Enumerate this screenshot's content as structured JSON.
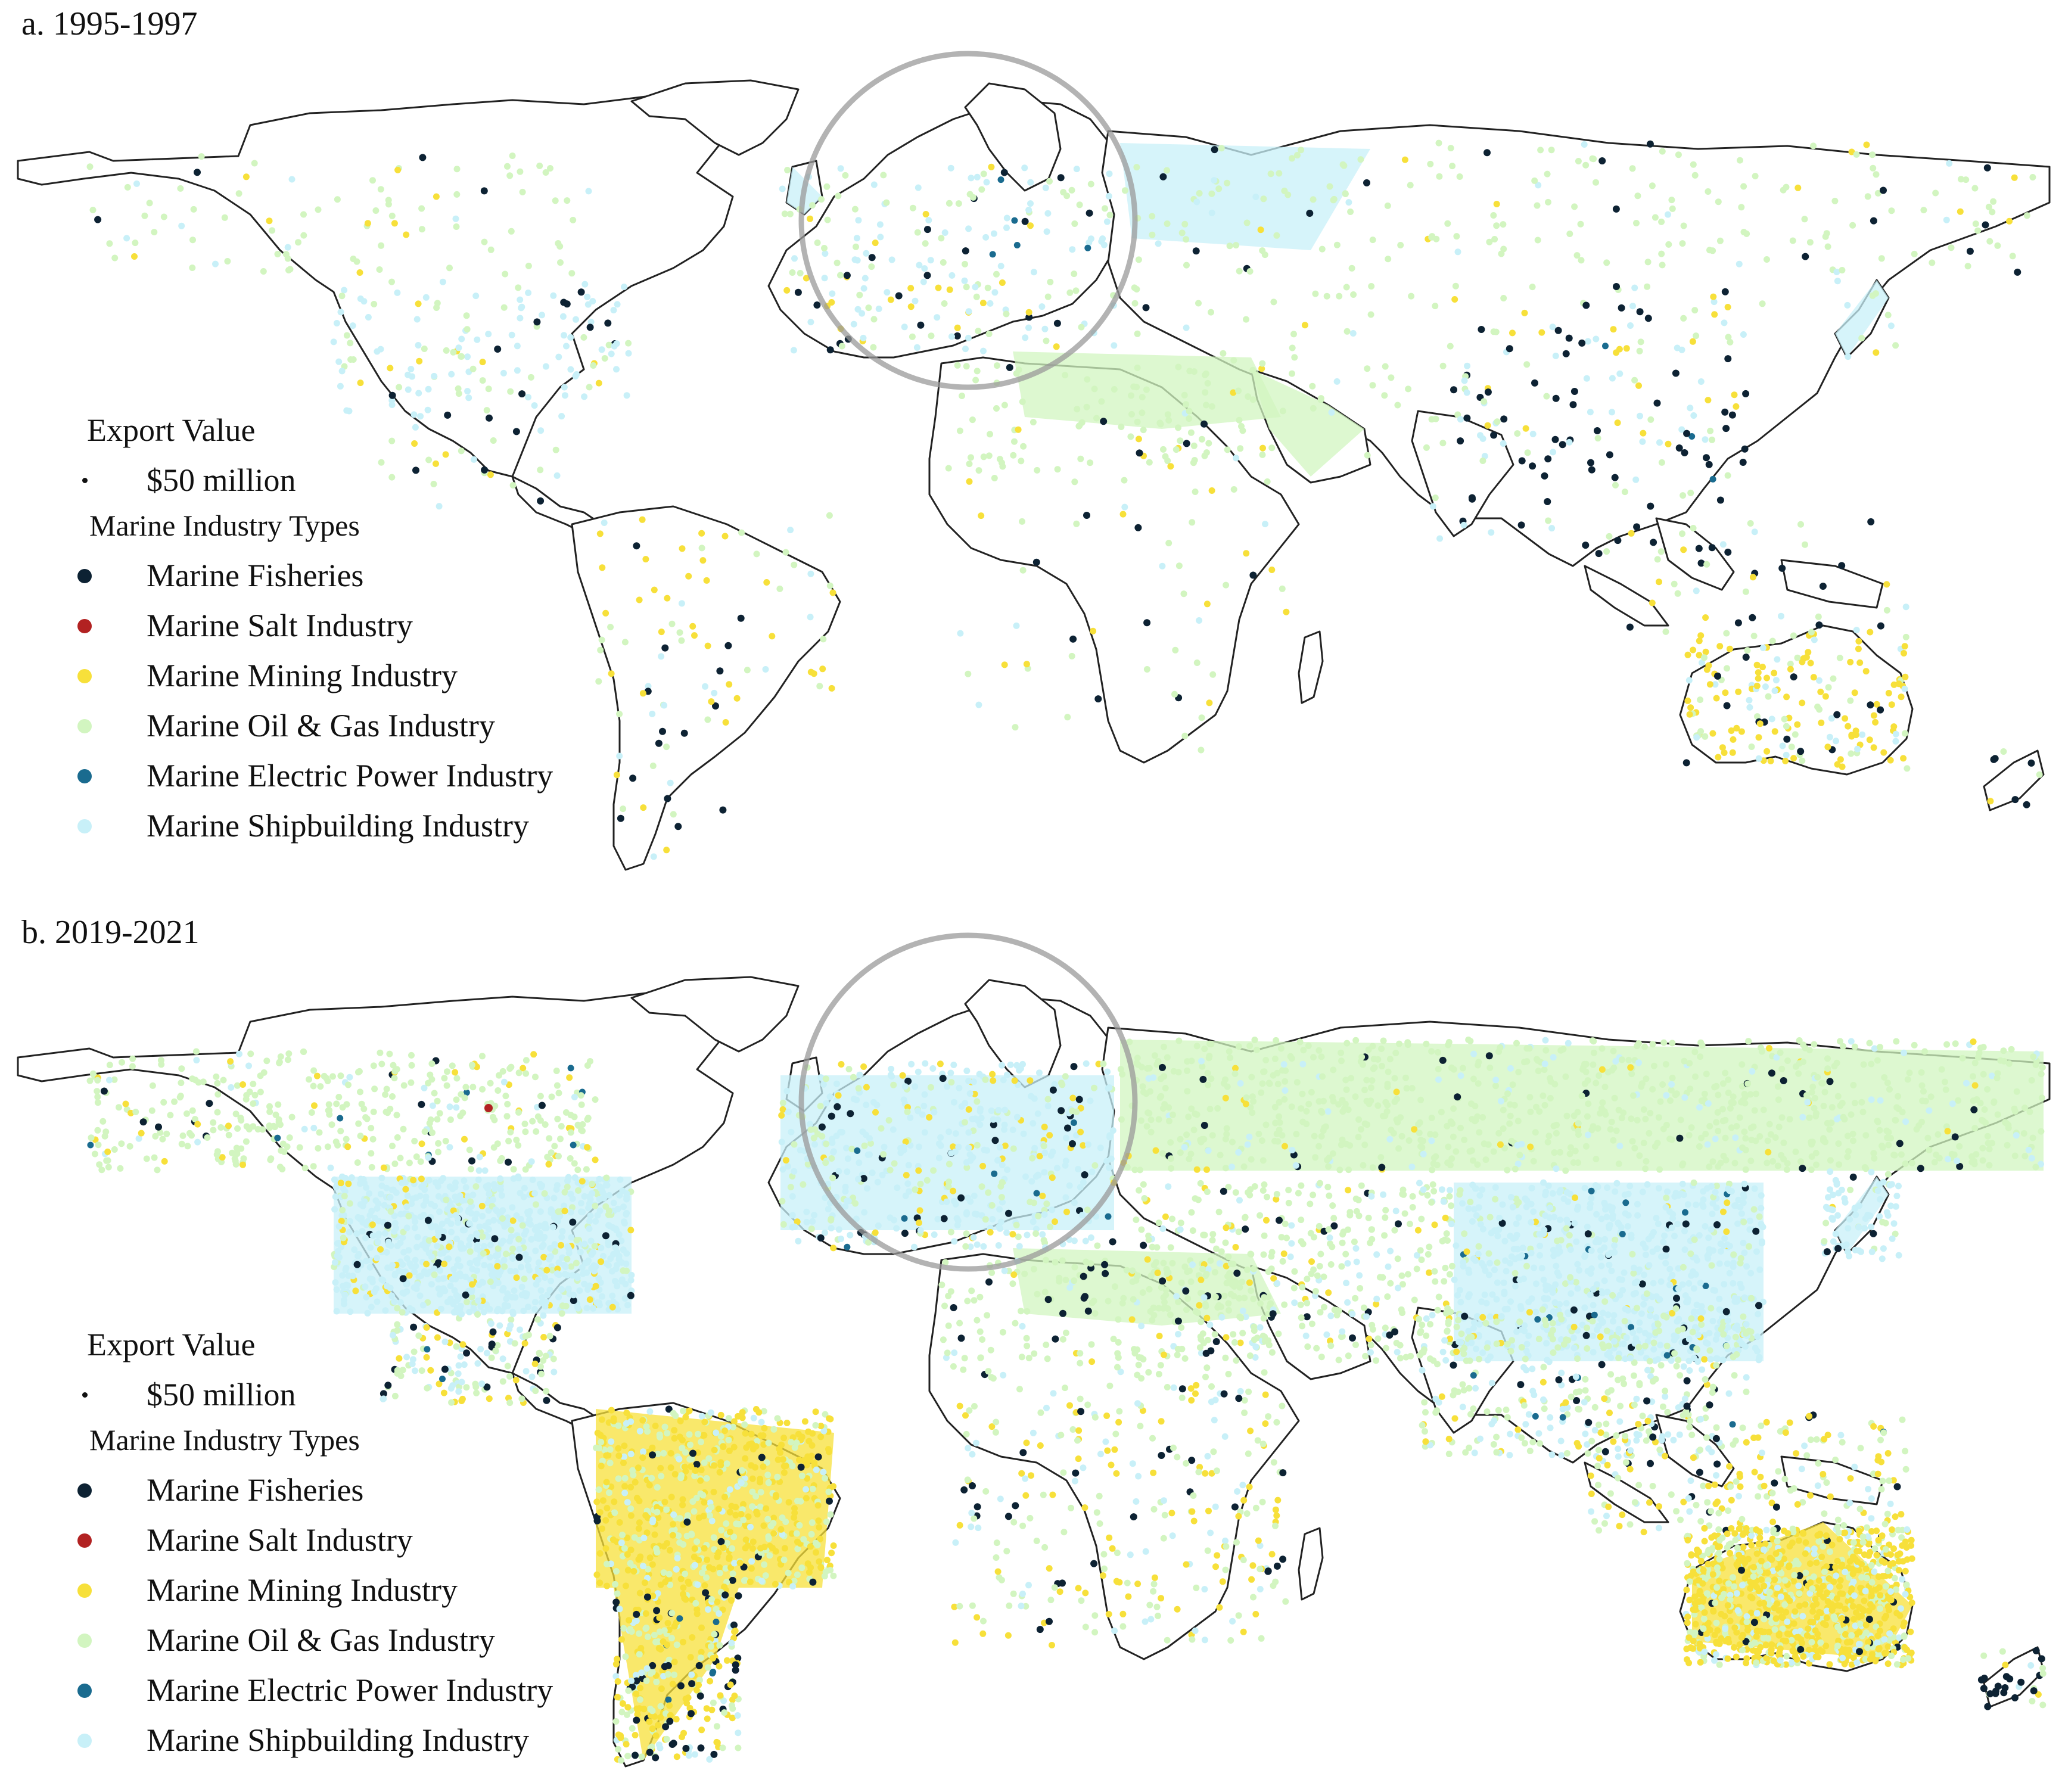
{
  "panels": [
    {
      "id": "a",
      "title": "a. 1995-1997",
      "legend": {
        "size_title": "Export Value",
        "size_label": "$50 million",
        "types_title": "Marine Industry Types"
      }
    },
    {
      "id": "b",
      "title": "b. 2019-2021",
      "legend": {
        "size_title": "Export Value",
        "size_label": "$50 million",
        "types_title": "Marine Industry Types"
      }
    }
  ],
  "industry_types": [
    {
      "name": "Marine Fisheries",
      "color": "#0d2233"
    },
    {
      "name": "Marine Salt Industry",
      "color": "#b22222"
    },
    {
      "name": "Marine Mining Industry",
      "color": "#f7e03a"
    },
    {
      "name": "Marine Oil & Gas Industry",
      "color": "#d2f5c0"
    },
    {
      "name": "Marine Electric Power Industry",
      "color": "#1a6b8f"
    },
    {
      "name": "Marine Shipbuilding Industry",
      "color": "#c8f0f8"
    }
  ],
  "map_style": {
    "land_fill": "#ffffff",
    "border_color": "#222222",
    "zoom_circle_color": "#9a9a9a"
  }
}
